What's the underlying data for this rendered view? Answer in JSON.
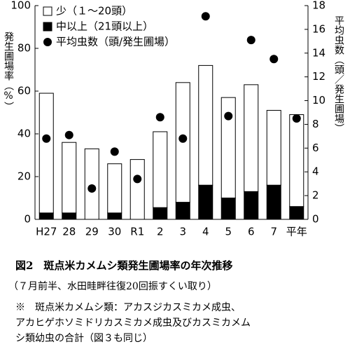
{
  "chart_data": {
    "type": "bar",
    "title": "図2　斑点米カメムシ類発生圃場率の年次推移",
    "subtitle": "（７月前半、水田畦畔往復20回振すくい取り）",
    "notes": [
      "※　斑点米カメムシ類：アカスジカスミカメ成虫、",
      "アカヒゲホソミドリカスミカメ成虫及びカスミカメム",
      "シ類幼虫の合計（図３も同じ）"
    ],
    "y_label": "発生圃場率（%）",
    "y2_label": "平均虫数（頭／発生圃場）",
    "categories": [
      "H27",
      "28",
      "29",
      "30",
      "R1",
      "2",
      "3",
      "4",
      "5",
      "6",
      "7",
      "平年"
    ],
    "series": [
      {
        "name": "中以上（21頭以上）",
        "type": "bar",
        "color": "#000000",
        "values": [
          3,
          3,
          0,
          3,
          0,
          5.5,
          8,
          16,
          10,
          13,
          16,
          6
        ]
      },
      {
        "name": "少（１～20頭）",
        "type": "bar",
        "color": "#ffffff",
        "values": [
          56,
          33,
          33,
          23,
          28,
          35.5,
          56,
          56,
          47,
          50,
          35,
          43
        ]
      },
      {
        "name": "平均虫数（頭/発生圃場）",
        "type": "scatter",
        "axis": "y2",
        "color": "#000000",
        "values": [
          6.8,
          7.1,
          2.6,
          5.7,
          3.4,
          8.6,
          6.8,
          17.1,
          8.7,
          15.1,
          13.5,
          8.5
        ]
      }
    ],
    "ylim": [
      0,
      100
    ],
    "yticks": [
      0,
      20,
      40,
      60,
      80,
      100
    ],
    "y2lim": [
      0,
      18
    ],
    "y2ticks": [
      0,
      2,
      4,
      6,
      8,
      10,
      12,
      14,
      16,
      18
    ]
  }
}
